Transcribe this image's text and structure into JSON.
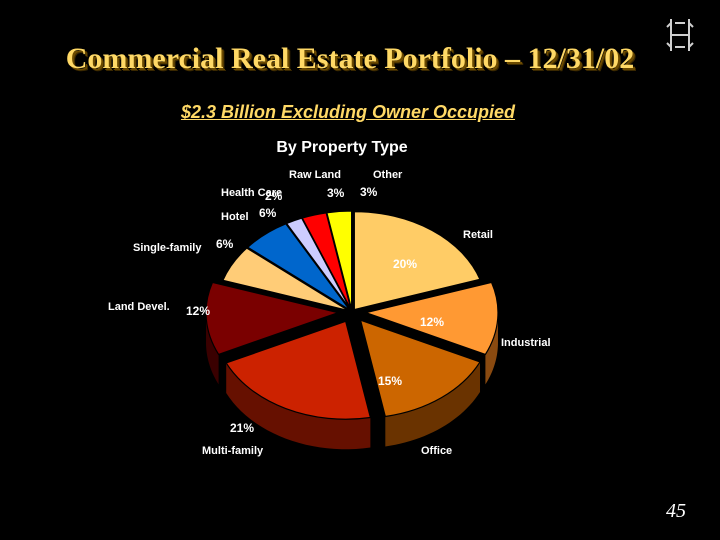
{
  "slide": {
    "title": "Commercial Real Estate Portfolio – 12/31/02",
    "subtitle": "$2.3 Billion Excluding Owner Occupied",
    "page_number": "45"
  },
  "chart_data": {
    "type": "pie",
    "title": "By Property Type",
    "slices": [
      {
        "category": "Retail",
        "value": 20,
        "pct_label": "20%",
        "color": "#ffcc66",
        "side": "#8a6a20",
        "exploded": false
      },
      {
        "category": "Industrial",
        "value": 12,
        "pct_label": "12%",
        "color": "#ff9933",
        "side": "#8a4a10",
        "exploded": true
      },
      {
        "category": "Office",
        "value": 15,
        "pct_label": "15%",
        "color": "#cc6600",
        "side": "#6a3300",
        "exploded": true
      },
      {
        "category": "Multi-family",
        "value": 21,
        "pct_label": "21%",
        "color": "#cc2200",
        "side": "#661000",
        "exploded": true
      },
      {
        "category": "Land Devel.",
        "value": 12,
        "pct_label": "12%",
        "color": "#7a0000",
        "side": "#3a0000",
        "exploded": true
      },
      {
        "category": "Single-family",
        "value": 6,
        "pct_label": "6%",
        "color": "#ffcc77",
        "side": "#8a6a30",
        "exploded": false
      },
      {
        "category": "Hotel",
        "value": 6,
        "pct_label": "6%",
        "color": "#0066cc",
        "side": "#003366",
        "exploded": false
      },
      {
        "category": "Health Care",
        "value": 2,
        "pct_label": "2%",
        "color": "#ccccff",
        "side": "#6666aa",
        "exploded": false
      },
      {
        "category": "Raw Land",
        "value": 3,
        "pct_label": "3%",
        "color": "#ff0000",
        "side": "#800000",
        "exploded": false
      },
      {
        "category": "Other",
        "value": 3,
        "pct_label": "3%",
        "color": "#ffff00",
        "side": "#808000",
        "exploded": false
      }
    ]
  }
}
